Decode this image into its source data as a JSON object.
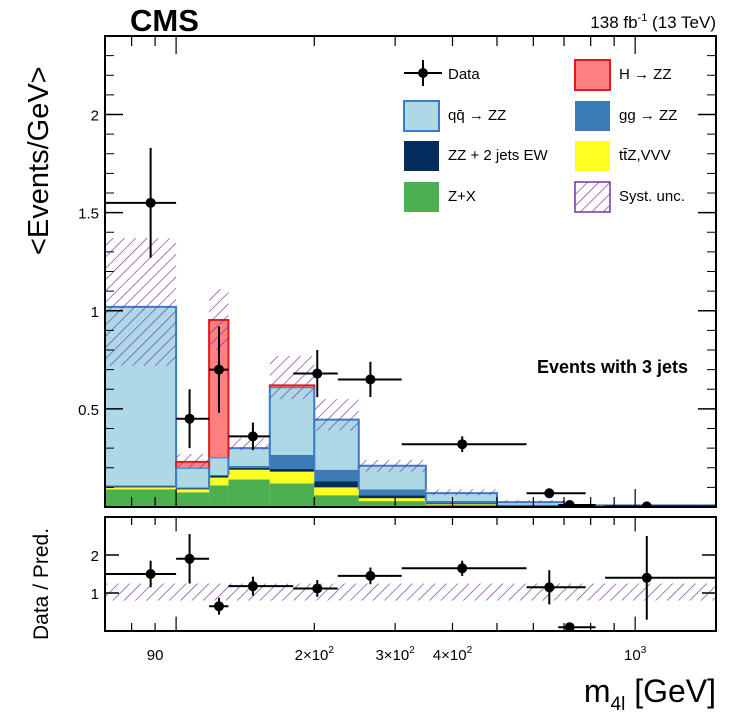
{
  "chart_data": {
    "type": "stacked-histogram",
    "experiment": "CMS",
    "lumi": "138 fb",
    "lumi_sup": "-1",
    "energy": " (13 TeV)",
    "annotation": "Events with 3 jets",
    "ylabel": "<Events/GeV>",
    "ratio_ylabel": "Data / Pred.",
    "xlabel": "m",
    "xlabel_sub": "4l",
    "xlabel_unit": " [GeV]",
    "xlog": true,
    "xlim": [
      70,
      1500
    ],
    "ylim": [
      0,
      2.4
    ],
    "ratio_ylim": [
      0,
      3
    ],
    "y_ticks": [
      {
        "value": 0.5,
        "label": "0.5"
      },
      {
        "value": 1,
        "label": "1"
      },
      {
        "value": 1.5,
        "label": "1.5"
      },
      {
        "value": 2,
        "label": "2"
      }
    ],
    "ratio_ticks": [
      {
        "value": 1,
        "label": "1"
      },
      {
        "value": 2,
        "label": "2"
      }
    ],
    "x_ticks": [
      {
        "value": 90,
        "label": "90",
        "sup": ""
      },
      {
        "value": 200,
        "label": "2×10",
        "sup": "2"
      },
      {
        "value": 300,
        "label": "3×10",
        "sup": "2"
      },
      {
        "value": 400,
        "label": "4×10",
        "sup": "2"
      },
      {
        "value": 1000,
        "label": "10",
        "sup": "3"
      }
    ],
    "bin_edges": [
      70,
      100,
      118,
      130,
      160,
      200,
      250,
      350,
      500,
      700,
      1500
    ],
    "colors": {
      "qqZZ": "#ADD8E6",
      "qqZZ_edge": "#3A7BC8",
      "ggZZ": "#3B7CB6",
      "EW": "#042D5E",
      "ttZ": "#FFFF22",
      "ZX": "#4CAF50",
      "H": "#FF8080",
      "H_edge": "#E11B1B",
      "syst": "#7B2FA8"
    },
    "series": [
      {
        "name": "Z+X",
        "key": "ZX",
        "values": [
          0.09,
          0.075,
          0.11,
          0.14,
          0.12,
          0.06,
          0.03,
          0.01,
          0.004,
          0.001
        ]
      },
      {
        "name": "ttZ,VVV",
        "key": "ttZ",
        "values": [
          0.01,
          0.015,
          0.04,
          0.05,
          0.06,
          0.04,
          0.015,
          0.004,
          0.001,
          0.0005
        ]
      },
      {
        "name": "ZZ + 2 jets EW",
        "key": "EW",
        "values": [
          0.005,
          0.005,
          0.008,
          0.01,
          0.015,
          0.03,
          0.015,
          0.005,
          0.002,
          0.001
        ]
      },
      {
        "name": "gg → ZZ",
        "key": "ggZZ",
        "values": [
          0.005,
          0.005,
          0.005,
          0.01,
          0.07,
          0.06,
          0.03,
          0.012,
          0.005,
          0.002
        ]
      },
      {
        "name": "qq̄ → ZZ",
        "key": "qqZZ",
        "values": [
          0.91,
          0.1,
          0.09,
          0.09,
          0.345,
          0.255,
          0.12,
          0.04,
          0.013,
          0.004
        ]
      },
      {
        "name": "H → ZZ",
        "key": "H",
        "values": [
          0,
          0.03,
          0.7,
          0,
          0.01,
          0,
          0,
          0,
          0,
          0
        ]
      }
    ],
    "syst_band": [
      {
        "low": 0.72,
        "high": 1.37
      },
      {
        "low": 0.2,
        "high": 0.27
      },
      {
        "low": 0.8,
        "high": 1.11
      },
      {
        "low": 0.29,
        "high": 0.35
      },
      {
        "low": 0.55,
        "high": 0.77
      },
      {
        "low": 0.39,
        "high": 0.55
      },
      {
        "low": 0.18,
        "high": 0.24
      },
      {
        "low": 0.06,
        "high": 0.09
      },
      {
        "low": 0.02,
        "high": 0.035
      },
      {
        "low": 0.005,
        "high": 0.012
      }
    ],
    "data": [
      {
        "x": 88,
        "y": 1.55,
        "xlo": 70,
        "xhi": 100,
        "yerr": 0.28
      },
      {
        "x": 107,
        "y": 0.45,
        "xlo": 100,
        "xhi": 118,
        "yerr": 0.15
      },
      {
        "x": 124,
        "y": 0.7,
        "xlo": 118,
        "xhi": 130,
        "yerr": 0.22
      },
      {
        "x": 147,
        "y": 0.36,
        "xlo": 130,
        "xhi": 160,
        "yerr": 0.07
      },
      {
        "x": 203,
        "y": 0.68,
        "xlo": 180,
        "xhi": 225,
        "yerr": 0.12
      },
      {
        "x": 265,
        "y": 0.65,
        "xlo": 225,
        "xhi": 310,
        "yerr": 0.09
      },
      {
        "x": 420,
        "y": 0.32,
        "xlo": 310,
        "xhi": 580,
        "yerr": 0.04
      },
      {
        "x": 650,
        "y": 0.07,
        "xlo": 580,
        "xhi": 780,
        "yerr": 0.015
      },
      {
        "x": 720,
        "y": 0.01,
        "xlo": 680,
        "xhi": 820,
        "yerr": 0.006
      },
      {
        "x": 1060,
        "y": 0.003,
        "xlo": 860,
        "xhi": 1500,
        "yerr": 0.002
      }
    ],
    "ratio_points": [
      {
        "x": 88,
        "y": 1.5,
        "xlo": 70,
        "xhi": 100,
        "yerr": 0.35
      },
      {
        "x": 107,
        "y": 1.9,
        "xlo": 100,
        "xhi": 118,
        "yerr": 0.65
      },
      {
        "x": 124,
        "y": 0.65,
        "xlo": 118,
        "xhi": 130,
        "yerr": 0.22
      },
      {
        "x": 147,
        "y": 1.18,
        "xlo": 130,
        "xhi": 180,
        "yerr": 0.25
      },
      {
        "x": 203,
        "y": 1.12,
        "xlo": 180,
        "xhi": 225,
        "yerr": 0.22
      },
      {
        "x": 265,
        "y": 1.45,
        "xlo": 225,
        "xhi": 310,
        "yerr": 0.22
      },
      {
        "x": 420,
        "y": 1.65,
        "xlo": 310,
        "xhi": 580,
        "yerr": 0.2
      },
      {
        "x": 650,
        "y": 1.15,
        "xlo": 580,
        "xhi": 780,
        "yerr": 0.45
      },
      {
        "x": 720,
        "y": 0.1,
        "xlo": 680,
        "xhi": 820,
        "yerr": 0.1
      },
      {
        "x": 1060,
        "y": 1.4,
        "xlo": 860,
        "xhi": 1500,
        "yerr": 1.1
      }
    ],
    "ratio_band": {
      "low": 0.8,
      "high": 1.25
    },
    "legend": [
      {
        "label": "Data",
        "key": "data"
      },
      {
        "label": "H → ZZ",
        "key": "H"
      },
      {
        "label": "qq̄ → ZZ",
        "key": "qqZZ"
      },
      {
        "label": "gg → ZZ",
        "key": "ggZZ"
      },
      {
        "label": "ZZ + 2 jets EW",
        "key": "EW"
      },
      {
        "label": "tt̄Z,VVV",
        "key": "ttZ"
      },
      {
        "label": "Z+X",
        "key": "ZX"
      },
      {
        "label": "Syst. unc.",
        "key": "syst"
      }
    ]
  }
}
